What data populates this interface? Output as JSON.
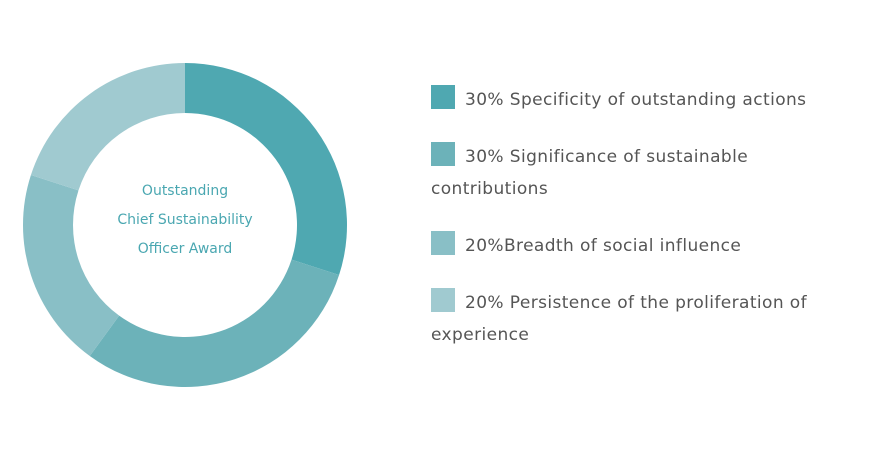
{
  "chart_data": {
    "type": "pie",
    "center_label": [
      "Outstanding",
      "Chief Sustainability",
      "Officer Award"
    ],
    "slices": [
      {
        "label": "30% Specificity of outstanding actions",
        "value": 30,
        "color": "#4fa8b1"
      },
      {
        "label": "30% Significance of sustainable contributions",
        "value": 30,
        "color": "#6cb2b9"
      },
      {
        "label": "20%Breadth of social influence",
        "value": 20,
        "color": "#89bfc6"
      },
      {
        "label": "20% Persistence of the proliferation of experience",
        "value": 20,
        "color": "#a0cad0"
      }
    ],
    "legend_position": "right"
  }
}
